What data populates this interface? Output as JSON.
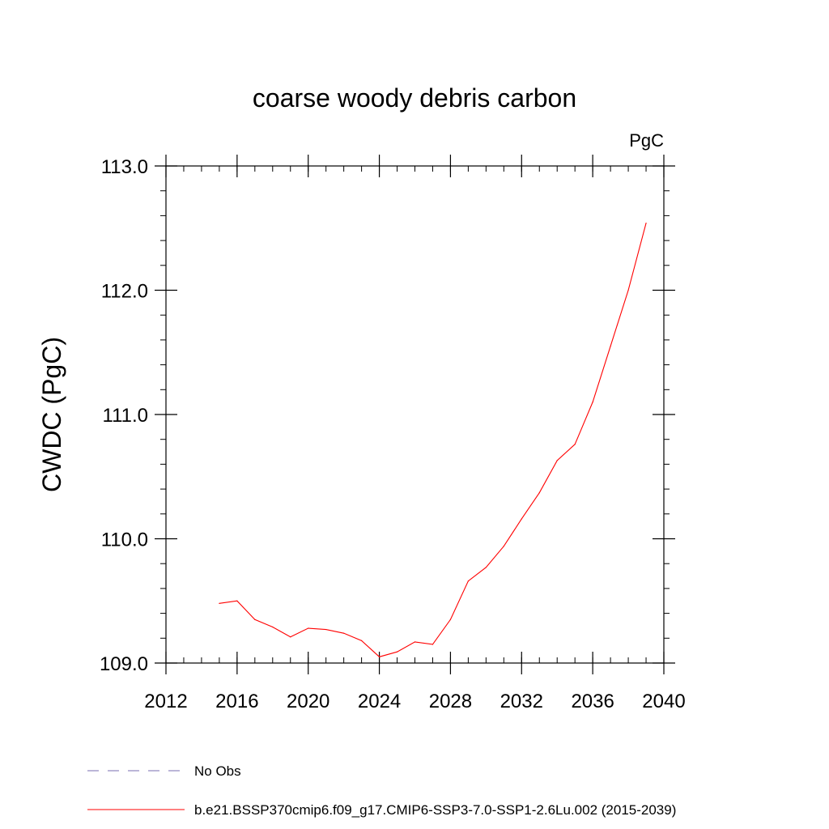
{
  "chart_data": {
    "type": "line",
    "title": "coarse woody debris carbon",
    "units_label": "PgC",
    "xlabel": "",
    "ylabel": "CWDC  (PgC)",
    "xlim": [
      2012,
      2040
    ],
    "ylim": [
      109.0,
      113.0
    ],
    "x_ticks": [
      2012,
      2016,
      2020,
      2024,
      2028,
      2032,
      2036,
      2040
    ],
    "x_tick_labels": [
      "2012",
      "2016",
      "2020",
      "2024",
      "2028",
      "2032",
      "2036",
      "2040"
    ],
    "y_ticks": [
      109.0,
      110.0,
      111.0,
      112.0,
      113.0
    ],
    "y_tick_labels": [
      "109.0",
      "110.0",
      "111.0",
      "112.0",
      "113.0"
    ],
    "x_minor_step": 1,
    "y_minor_step": 0.2,
    "grid": false,
    "legend_position": "bottom",
    "series": [
      {
        "name": "No Obs",
        "style": "dashed",
        "color": "#7a6cb0",
        "x": [],
        "values": []
      },
      {
        "name": "b.e21.BSSP370cmip6.f09_g17.CMIP6-SSP3-7.0-SSP1-2.6Lu.002 (2015-2039)",
        "style": "solid",
        "color": "#ff0000",
        "x": [
          2015,
          2016,
          2017,
          2018,
          2019,
          2020,
          2021,
          2022,
          2023,
          2024,
          2025,
          2026,
          2027,
          2028,
          2029,
          2030,
          2031,
          2032,
          2033,
          2034,
          2035,
          2036,
          2037,
          2038,
          2039
        ],
        "values": [
          109.48,
          109.5,
          109.35,
          109.29,
          109.21,
          109.28,
          109.27,
          109.24,
          109.18,
          109.05,
          109.09,
          109.17,
          109.15,
          109.35,
          109.66,
          109.77,
          109.94,
          110.16,
          110.37,
          110.63,
          110.76,
          111.1,
          111.55,
          112.0,
          112.54
        ]
      }
    ]
  }
}
